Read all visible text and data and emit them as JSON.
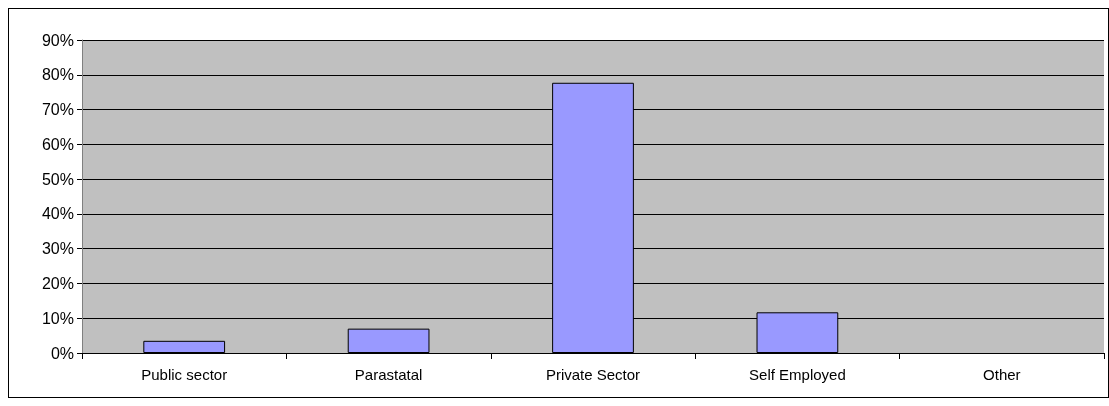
{
  "chart_data": {
    "type": "bar",
    "categories": [
      "Public sector",
      "Parastatal",
      "Private Sector",
      "Self Employed",
      "Other"
    ],
    "values": [
      3.5,
      7,
      77.7,
      11.7,
      0
    ],
    "color": "#9999ff",
    "ylim": [
      0,
      90
    ],
    "yticks": [
      {
        "value": 0,
        "label": "0%"
      },
      {
        "value": 10,
        "label": "10%"
      },
      {
        "value": 20,
        "label": "20%"
      },
      {
        "value": 30,
        "label": "30%"
      },
      {
        "value": 40,
        "label": "40%"
      },
      {
        "value": 50,
        "label": "50%"
      },
      {
        "value": 60,
        "label": "60%"
      },
      {
        "value": 70,
        "label": "70%"
      },
      {
        "value": 80,
        "label": "80%"
      },
      {
        "value": 90,
        "label": "90%"
      }
    ],
    "grid": "y"
  }
}
